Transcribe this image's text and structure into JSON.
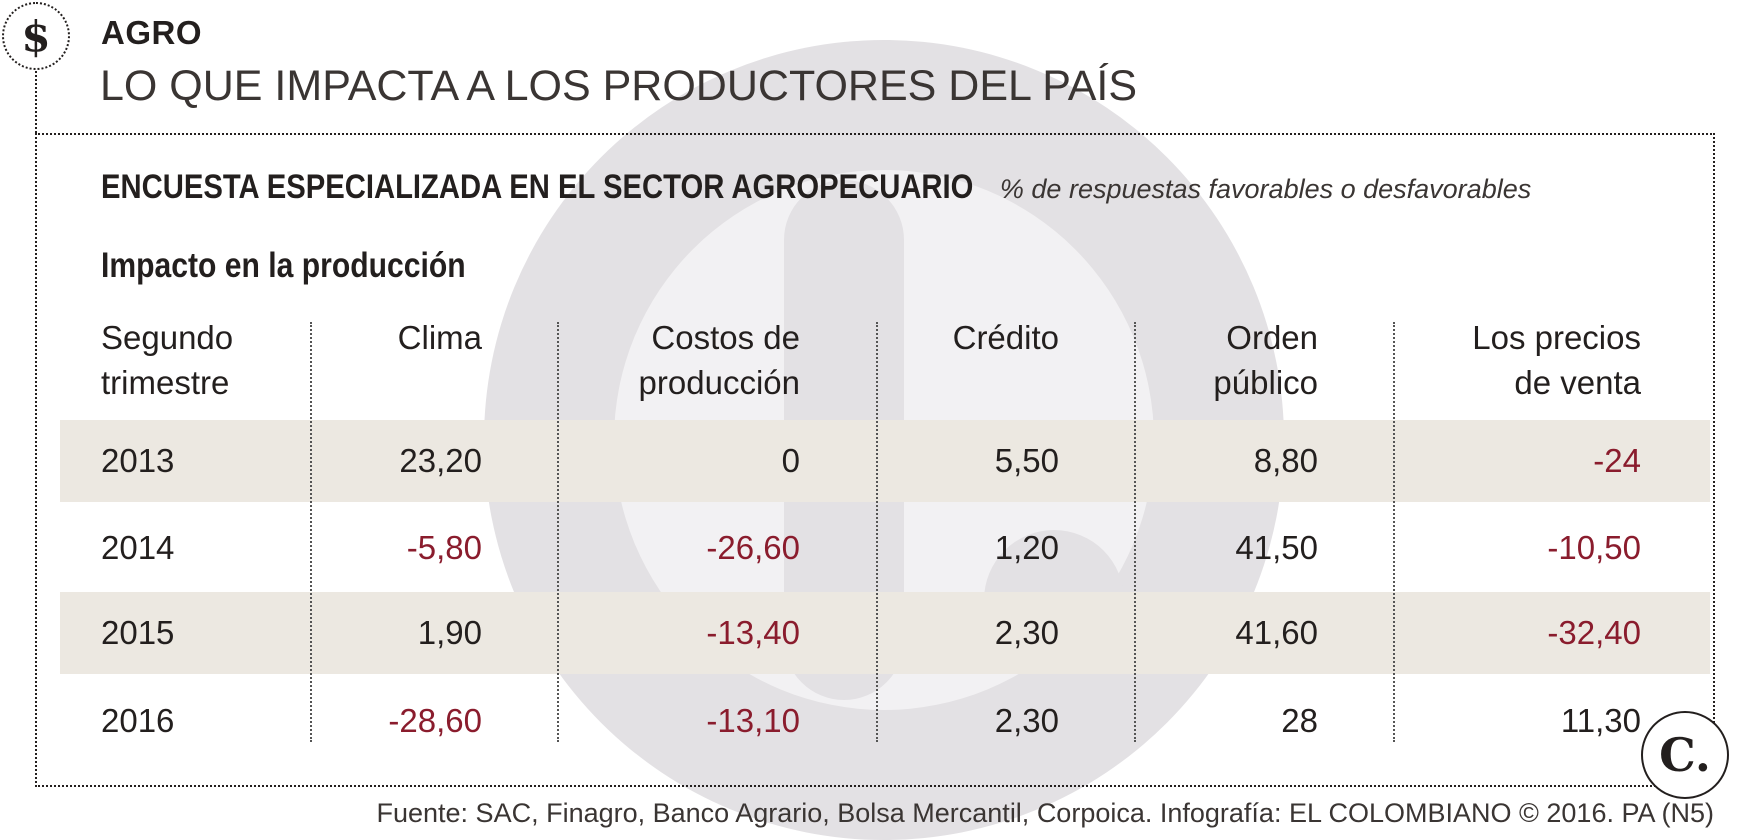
{
  "header": {
    "badge_symbol": "$",
    "section": "AGRO",
    "headline": "LO QUE IMPACTA A LOS PRODUCTORES DEL PAÍS"
  },
  "survey": {
    "title": "ENCUESTA ESPECIALIZADA EN EL SECTOR AGROPECUARIO",
    "note": "% de respuestas favorables o desfavorables"
  },
  "table": {
    "subtitle": "Impacto en la producción",
    "columns": [
      [
        "Segundo",
        "trimestre"
      ],
      [
        "Clima"
      ],
      [
        "Costos de",
        "producción"
      ],
      [
        "Crédito"
      ],
      [
        "Orden",
        "público"
      ],
      [
        "Los precios",
        "de venta"
      ]
    ],
    "rows": [
      {
        "year": "2013",
        "values": [
          "23,20",
          "0",
          "5,50",
          "8,80",
          "-24"
        ]
      },
      {
        "year": "2014",
        "values": [
          "-5,80",
          "-26,60",
          "1,20",
          "41,50",
          "-10,50"
        ]
      },
      {
        "year": "2015",
        "values": [
          "1,90",
          "-13,40",
          "2,30",
          "41,60",
          "-32,40"
        ]
      },
      {
        "year": "2016",
        "values": [
          "-28,60",
          "-13,10",
          "2,30",
          "28",
          "11,30"
        ]
      }
    ],
    "colors": {
      "negative": "#8a1c2d",
      "positive": "#231f1e",
      "stripe": "#ece8e1"
    }
  },
  "logo_mark": "C.",
  "footer": {
    "source": "Fuente: SAC, Finagro, Banco Agrario, Bolsa Mercantil, Corpoica. Infografía: EL COLOMBIANO © 2016. PA (N5)"
  }
}
